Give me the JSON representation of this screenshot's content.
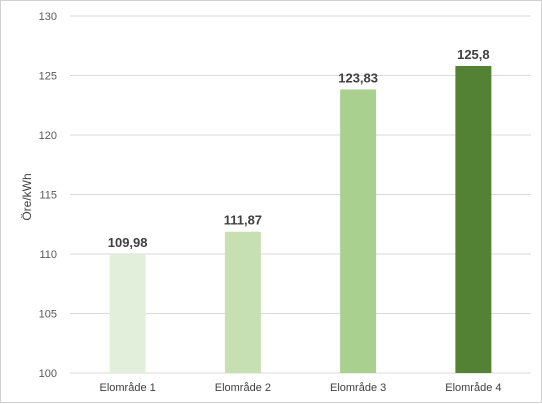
{
  "chart_data": {
    "type": "bar",
    "categories": [
      "Elområde 1",
      "Elområde 2",
      "Elområde 3",
      "Elområde 4"
    ],
    "values": [
      109.98,
      111.87,
      123.83,
      125.8
    ],
    "data_labels": [
      "109,98",
      "111,87",
      "123,83",
      "125,8"
    ],
    "bar_colors": [
      "#e2efda",
      "#c6e0b4",
      "#a9d08e",
      "#548235"
    ],
    "ylabel": "Öre/kWh",
    "ylim": [
      100,
      130
    ],
    "yticks": [
      "100",
      "105",
      "110",
      "115",
      "120",
      "125",
      "130"
    ],
    "grid": true,
    "gridline_color": "#d9d9d9"
  }
}
